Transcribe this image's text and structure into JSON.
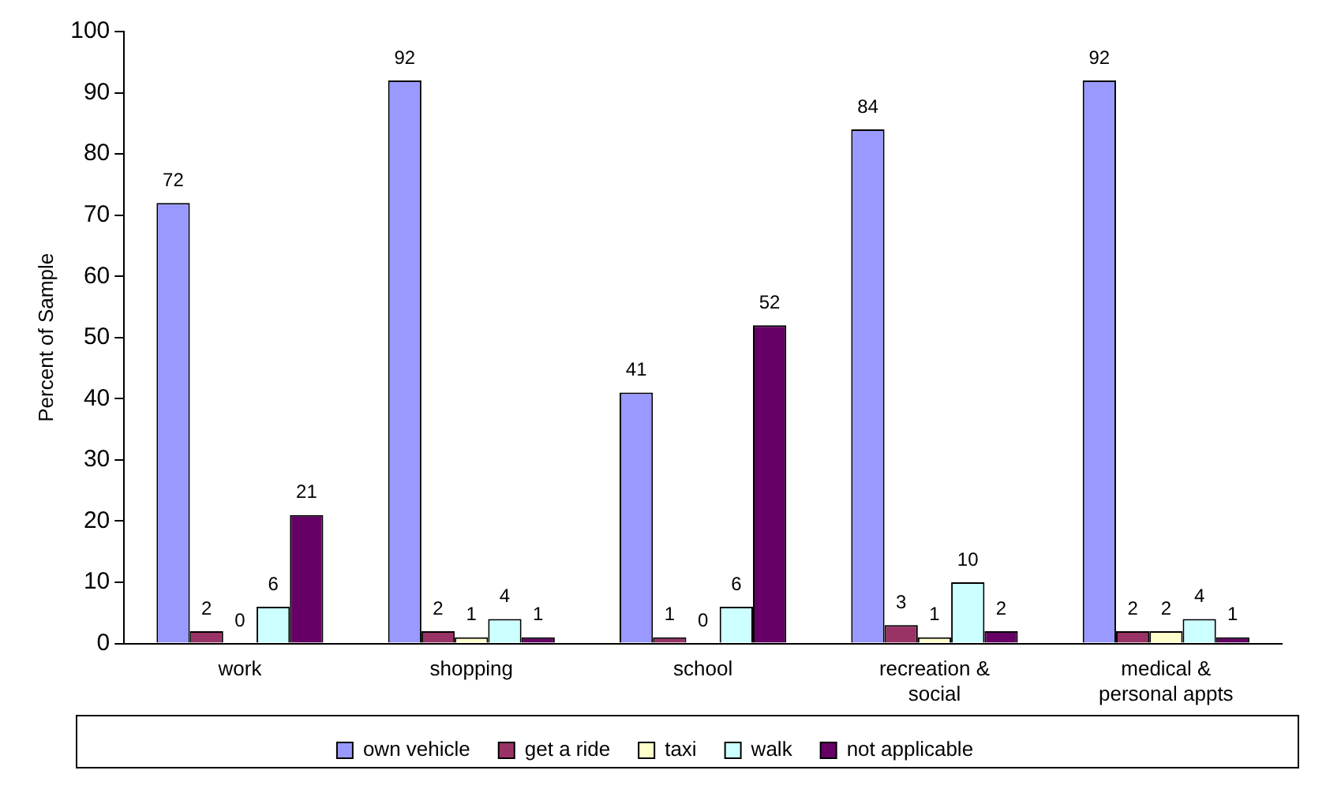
{
  "chart_data": {
    "type": "bar",
    "ylabel": "Percent of Sample",
    "categories": [
      "work",
      "shopping",
      "school",
      "recreation &\nsocial",
      "medical &\npersonal appts"
    ],
    "series": [
      {
        "name": "own vehicle",
        "color": "#9999ff",
        "values": [
          72,
          92,
          41,
          84,
          92
        ]
      },
      {
        "name": "get a ride",
        "color": "#993366",
        "values": [
          2,
          2,
          1,
          3,
          2
        ]
      },
      {
        "name": "taxi",
        "color": "#ffffcc",
        "values": [
          0,
          1,
          0,
          1,
          2
        ]
      },
      {
        "name": "walk",
        "color": "#ccffff",
        "values": [
          6,
          4,
          6,
          10,
          4
        ]
      },
      {
        "name": "not applicable",
        "color": "#660066",
        "values": [
          21,
          1,
          52,
          2,
          1
        ]
      }
    ],
    "ylim": [
      0,
      100
    ],
    "yticks": [
      0,
      10,
      20,
      30,
      40,
      50,
      60,
      70,
      80,
      90,
      100
    ],
    "grid": false,
    "legend": "bottom",
    "data_labels": true
  }
}
